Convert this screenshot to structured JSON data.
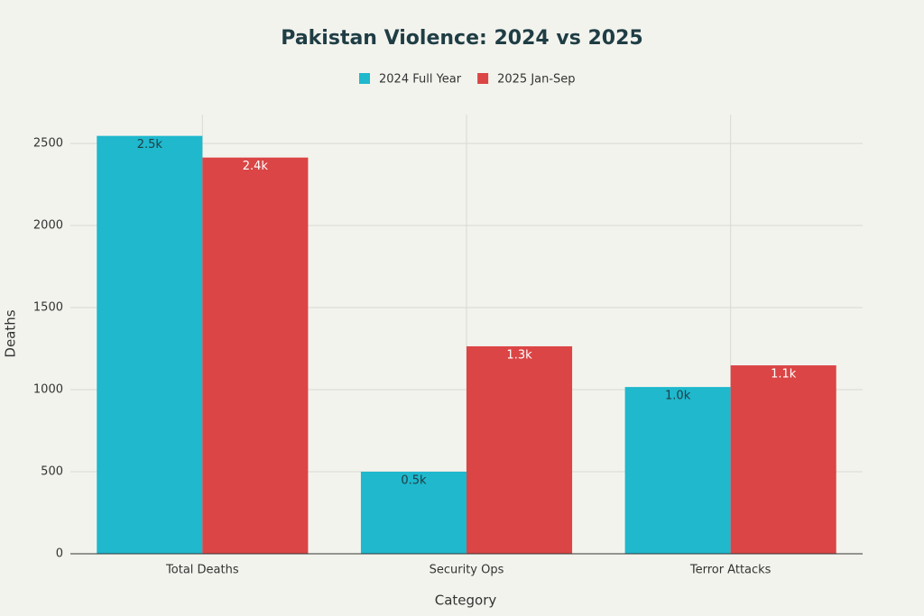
{
  "chart_data": {
    "type": "bar",
    "title": "Pakistan Violence: 2024 vs 2025",
    "x_label": "Category",
    "y_label": "Deaths",
    "categories": [
      "Total Deaths",
      "Security Ops",
      "Terror Attacks"
    ],
    "series": [
      {
        "name": "2024 Full Year",
        "color": "#1fb8cd",
        "values": [
          2546,
          500,
          1016
        ],
        "value_labels": [
          "2.5k",
          "0.5k",
          "1.0k"
        ]
      },
      {
        "name": "2025 Jan-Sep",
        "color": "#db4545",
        "values": [
          2414,
          1264,
          1148
        ],
        "value_labels": [
          "2.4k",
          "1.3k",
          "1.1k"
        ]
      }
    ],
    "ylim": [
      0,
      2676
    ],
    "yticks": [
      0,
      500,
      1000,
      1500,
      2000,
      2500
    ],
    "grid": true
  }
}
